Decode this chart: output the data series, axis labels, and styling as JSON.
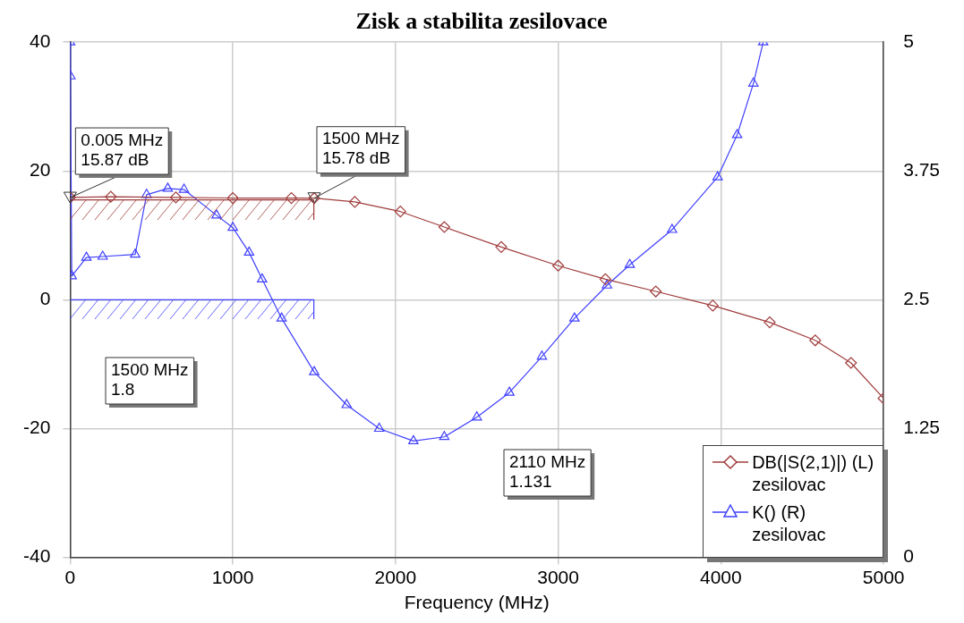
{
  "chart_data": {
    "type": "line",
    "title": "Zisk a stabilita zesilovace",
    "xlabel": "Frequency (MHz)",
    "xlim": [
      0,
      5000
    ],
    "xticks": [
      0,
      1000,
      2000,
      3000,
      4000,
      5000
    ],
    "ylim": [
      -40,
      40
    ],
    "yticks": [
      -40,
      -20,
      0,
      20,
      40
    ],
    "y2lim": [
      0,
      5
    ],
    "y2ticks": [
      0,
      1.25,
      2.5,
      3.75,
      5
    ],
    "grid": true,
    "legend": "bottom right",
    "series": [
      {
        "name": "DB(|S(2,1)|) (L)\nzesilovac",
        "color": "#a03c3c",
        "marker": "diamond",
        "x": [
          0,
          250,
          650,
          1000,
          1360,
          1500,
          1750,
          2030,
          2300,
          2650,
          3000,
          3290,
          3600,
          3950,
          4300,
          4580,
          4800,
          5000
        ],
        "values": [
          15.9,
          16.0,
          15.9,
          15.8,
          15.8,
          15.78,
          15.2,
          13.7,
          11.3,
          8.2,
          5.3,
          3.2,
          1.3,
          -0.9,
          -3.5,
          -6.3,
          -9.8,
          -15.3
        ]
      },
      {
        "name": "K() (R)\nzesilovac",
        "color": "#4040ff",
        "marker": "triangle",
        "axis": "y2",
        "x": [
          0,
          2,
          10,
          100,
          200,
          400,
          470,
          600,
          700,
          900,
          1000,
          1100,
          1180,
          1300,
          1500,
          1700,
          1900,
          2110,
          2300,
          2500,
          2700,
          2900,
          3100,
          3300,
          3440,
          3700,
          3980,
          4100,
          4200,
          4260
        ],
        "values": [
          5.0,
          4.67,
          2.73,
          2.91,
          2.92,
          2.94,
          3.52,
          3.58,
          3.57,
          3.32,
          3.2,
          2.96,
          2.7,
          2.32,
          1.8,
          1.48,
          1.25,
          1.13,
          1.17,
          1.36,
          1.6,
          1.95,
          2.32,
          2.64,
          2.84,
          3.18,
          3.69,
          4.1,
          4.6,
          5.0
        ]
      }
    ],
    "ref_lines": [
      {
        "axis": "y",
        "value": 15.5,
        "color": "#a03c3c"
      },
      {
        "axis": "y2",
        "value": 2.5,
        "color": "#4040ff"
      }
    ],
    "annotations": [
      {
        "text": "0.005 MHz\n15.87 dB",
        "x": 0.005,
        "y": 15.87
      },
      {
        "text": "1500 MHz\n15.78 dB",
        "x": 1500,
        "y": 15.78
      },
      "1500 MHz\n1.8",
      "2110 MHz\n1.131"
    ]
  }
}
